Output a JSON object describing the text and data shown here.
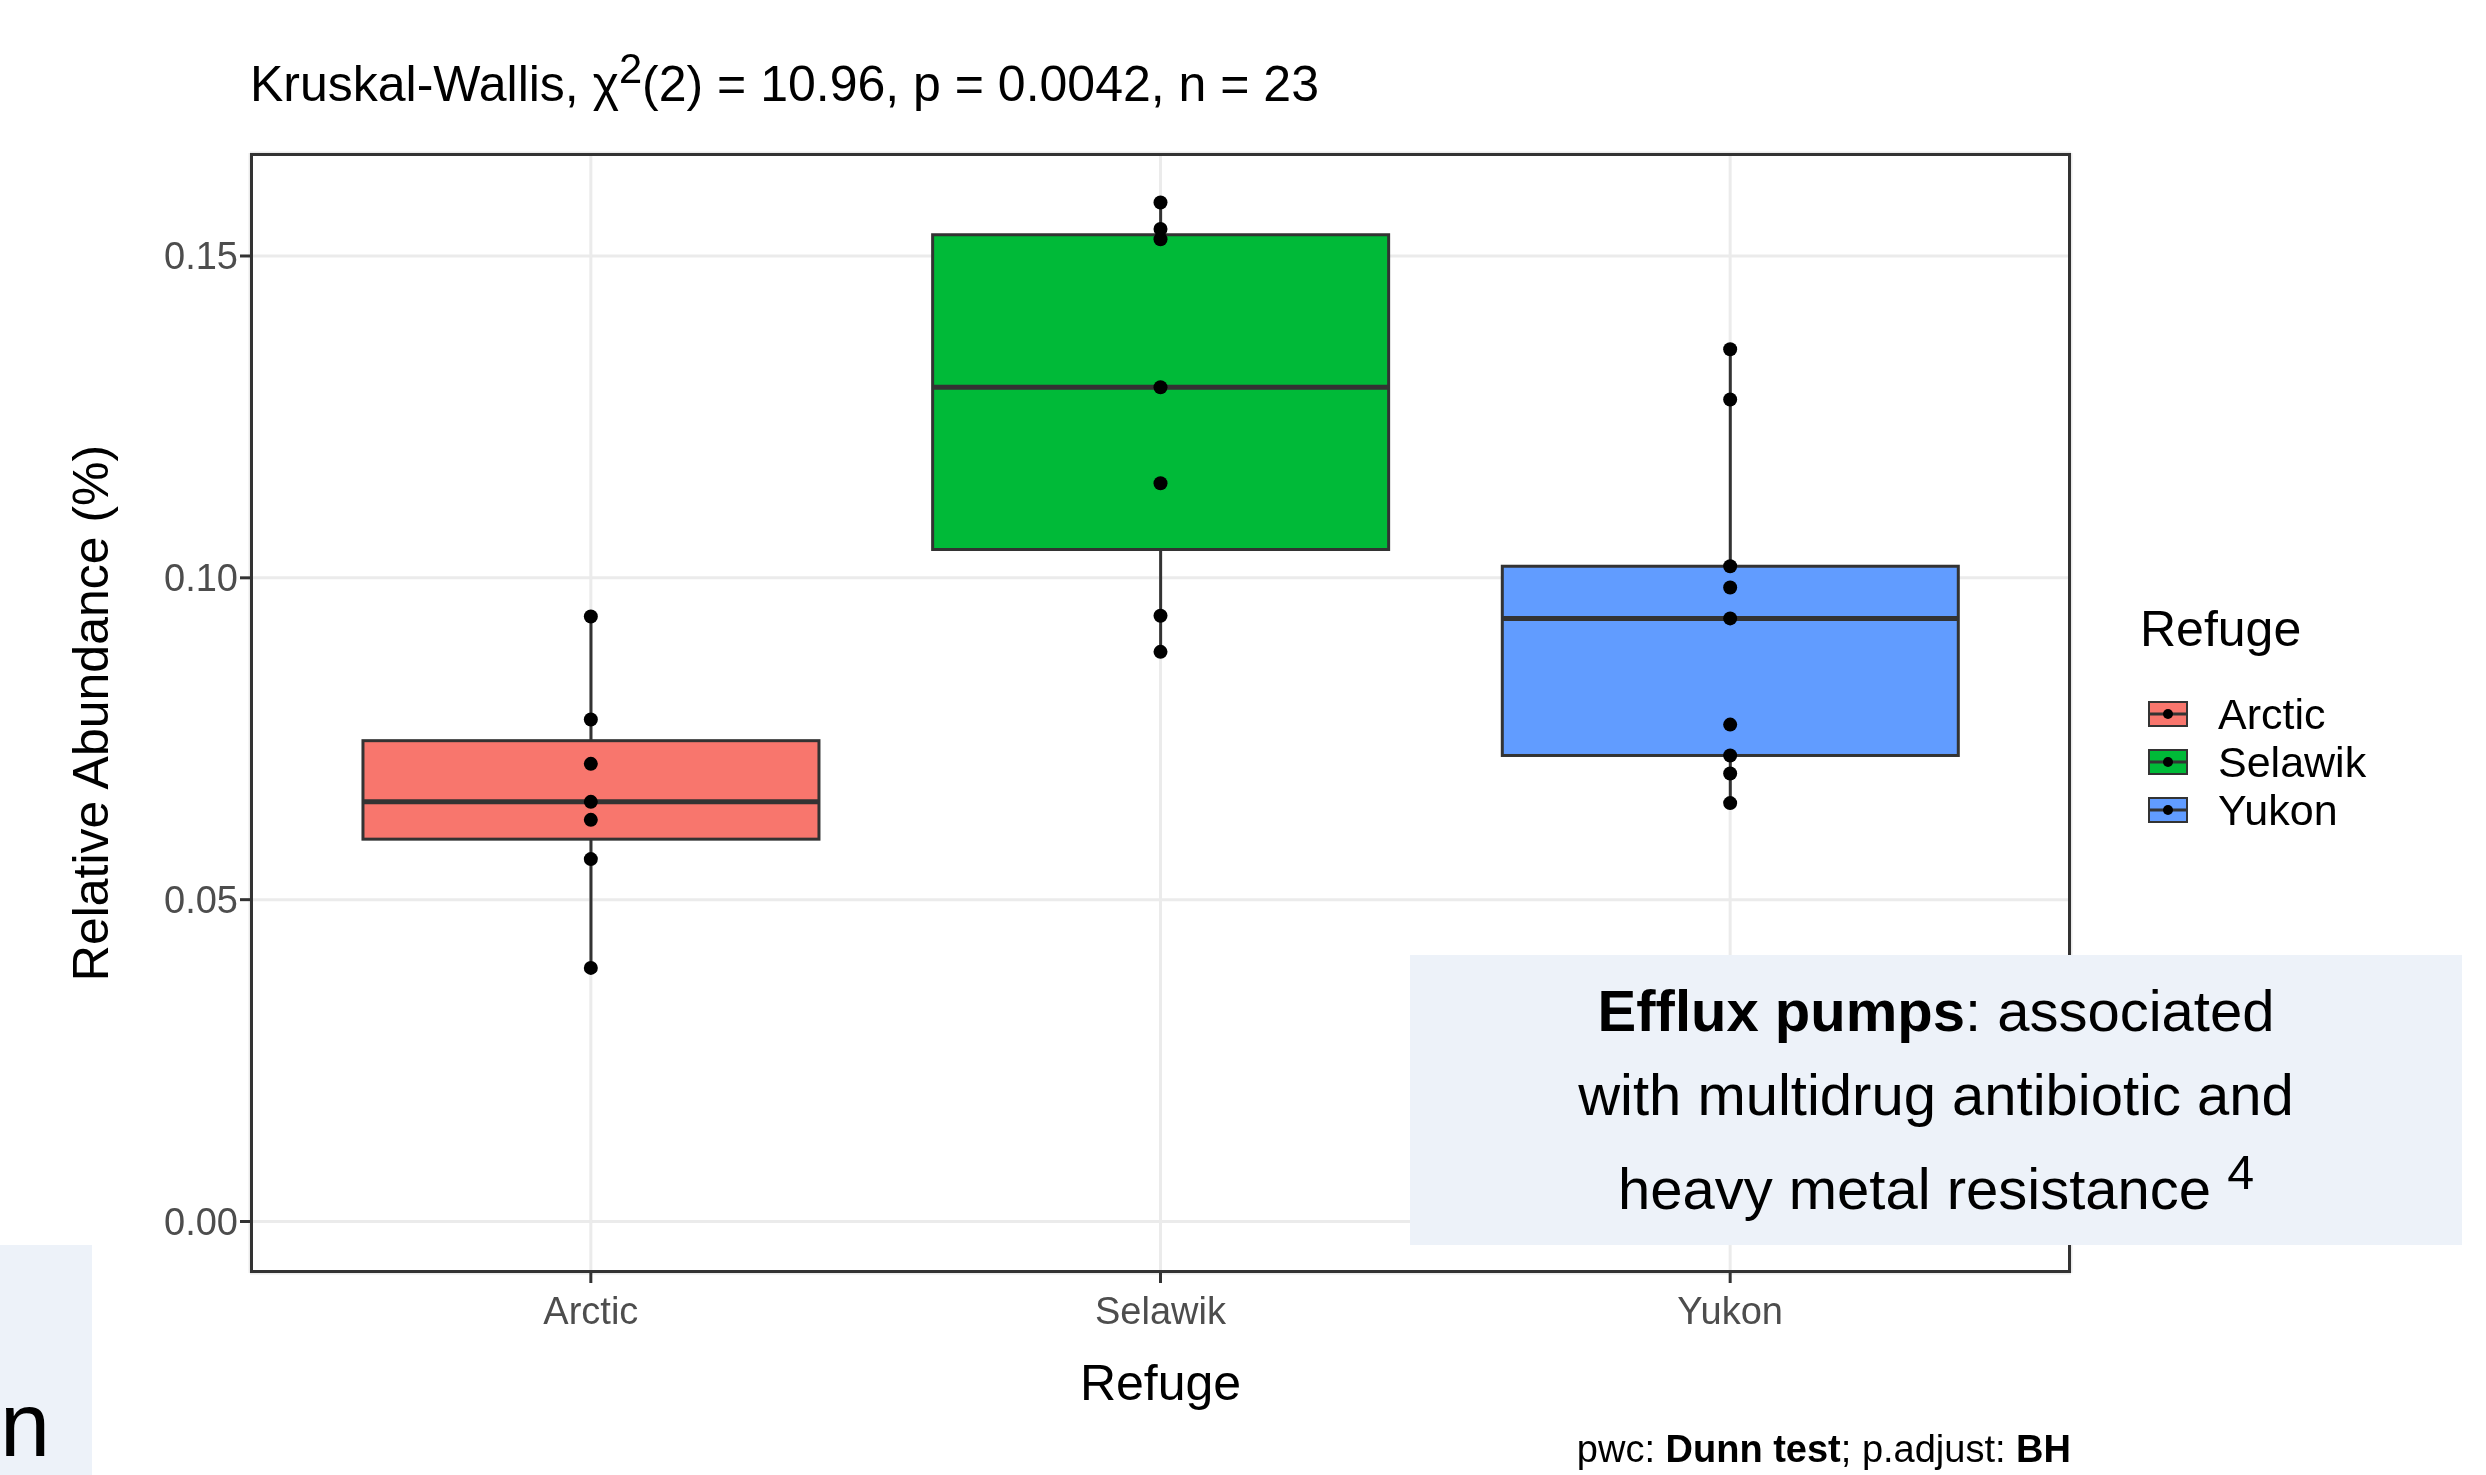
{
  "chart_data": {
    "type": "box",
    "title": "Kruskal-Wallis, χ$^{2}$(2) = 10.96, p = 0.0042, n = 23",
    "xlabel": "Refuge",
    "ylabel": "Relative Abundance (%)",
    "legend_title": "Refuge",
    "legend": "right",
    "grid": true,
    "categories": [
      "Arctic",
      "Selawik",
      "Yukon"
    ],
    "series": [
      {
        "type": "box",
        "name": "Arctic",
        "color": "#f8766d",
        "boxes": [
          {
            "low": 0.0394,
            "q1": 0.0594,
            "median": 0.0652,
            "q3": 0.0747,
            "high": 0.094
          },
          null,
          null
        ]
      },
      {
        "type": "box",
        "name": "Selawik",
        "color": "#00ba38",
        "boxes": [
          null,
          {
            "low": 0.0885,
            "q1": 0.1044,
            "median": 0.1296,
            "q3": 0.1533,
            "high": 0.1583
          },
          null
        ]
      },
      {
        "type": "box",
        "name": "Yukon",
        "color": "#619cff",
        "boxes": [
          null,
          null,
          {
            "low": 0.065,
            "q1": 0.0724,
            "median": 0.0937,
            "q3": 0.1018,
            "high": 0.1355
          }
        ]
      },
      {
        "type": "scatter",
        "color": "#000000",
        "marker": "circle",
        "x": [
          "Arctic",
          "Arctic",
          "Arctic",
          "Arctic",
          "Arctic",
          "Arctic",
          "Arctic",
          "Selawik",
          "Selawik",
          "Selawik",
          "Selawik",
          "Selawik",
          "Selawik",
          "Selawik",
          "Yukon",
          "Yukon",
          "Yukon",
          "Yukon",
          "Yukon",
          "Yukon",
          "Yukon",
          "Yukon",
          "Yukon"
        ],
        "values": [
          0.094,
          0.078,
          0.0711,
          0.0652,
          0.0624,
          0.0563,
          0.0394,
          0.1583,
          0.1542,
          0.1526,
          0.1296,
          0.1147,
          0.0941,
          0.0885,
          0.1355,
          0.1277,
          0.1018,
          0.0985,
          0.0937,
          0.0772,
          0.0724,
          0.0696,
          0.065
        ]
      }
    ],
    "ylim": [
      -0.008,
      0.166
    ],
    "yticks": [
      {
        "value": 0,
        "label": "0.00"
      },
      {
        "value": 0.05,
        "label": "0.05"
      },
      {
        "value": 0.1,
        "label": "0.10"
      },
      {
        "value": 0.15,
        "label": "0.15"
      }
    ],
    "annotations": [
      "Efflux pumps: associated with multidrug antibiotic and heavy metal resistance $^{4}$",
      "pwc: Dunn test; p.adjust: BH",
      "n"
    ]
  }
}
